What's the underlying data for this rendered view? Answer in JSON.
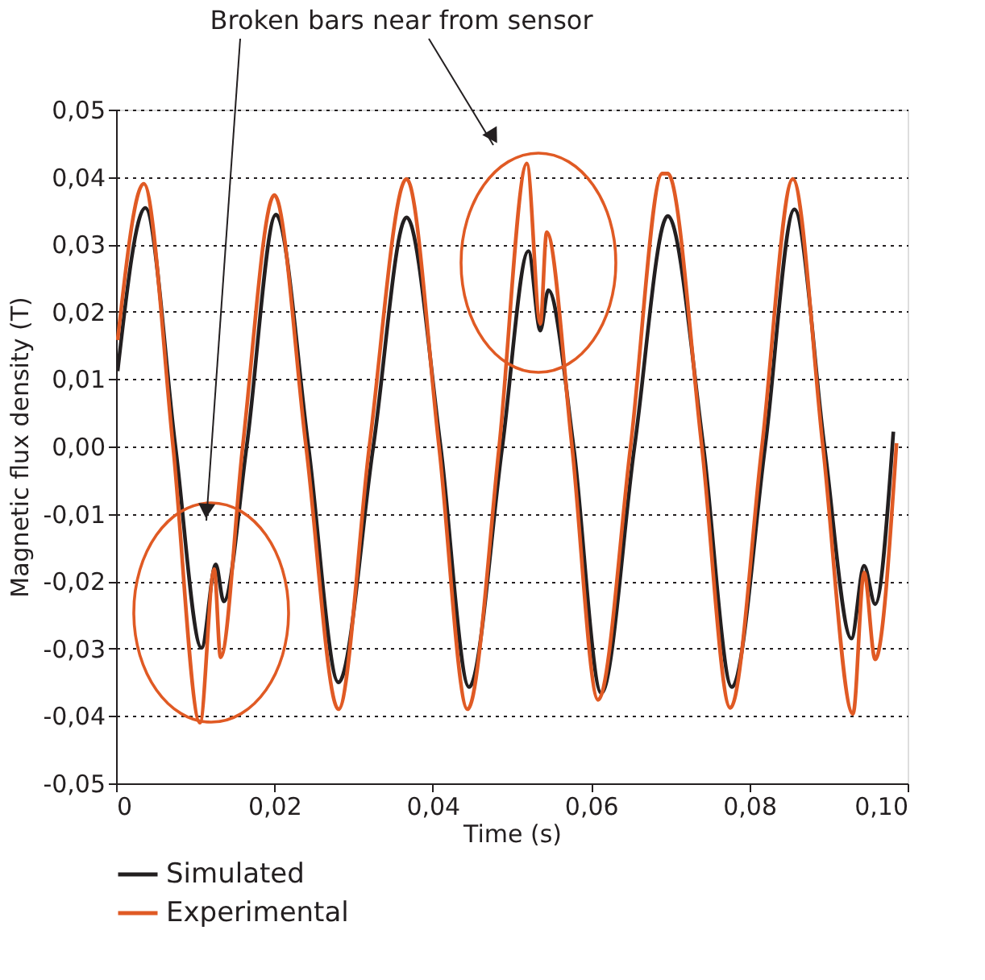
{
  "chart_data": {
    "type": "line",
    "xlabel": "Time (s)",
    "ylabel": "Magnetic flux density (T)",
    "annotations": [
      "Broken bars near from sensor"
    ],
    "xlim": [
      0,
      0.1
    ],
    "xticks": [
      0,
      {
        "value": 0.02,
        "label": "0,02"
      },
      {
        "value": 0.04,
        "label": "0,04"
      },
      {
        "value": 0.06,
        "label": "0,06"
      },
      {
        "value": 0.08,
        "label": "0,08"
      },
      {
        "value": 0.1,
        "label": "0,10"
      }
    ],
    "ylim": [
      -0.05,
      0.05
    ],
    "yticks": [
      {
        "value": -0.05,
        "label": "-0,05"
      },
      {
        "value": -0.04,
        "label": "-0,04"
      },
      {
        "value": -0.03,
        "label": "-0,03"
      },
      {
        "value": -0.02,
        "label": "-0,02"
      },
      {
        "value": -0.01,
        "label": "-0,01"
      },
      {
        "value": 0,
        "label": "0,00"
      },
      {
        "value": 0.01,
        "label": "0,01"
      },
      {
        "value": 0.02,
        "label": "0,02"
      },
      {
        "value": 0.03,
        "label": "0,03"
      },
      {
        "value": 0.04,
        "label": "0,04"
      },
      {
        "value": 0.05,
        "label": "0,05"
      }
    ],
    "grid": "y",
    "legend": "bottom",
    "marker": "none",
    "line_style": "solid",
    "series": [
      {
        "name": "Simulated",
        "color": "#231f20",
        "x": [
          0.0002,
          0.0037,
          0.0075,
          0.0108,
          0.0126,
          0.0136,
          0.0165,
          0.0202,
          0.0243,
          0.0281,
          0.0325,
          0.0367,
          0.041,
          0.0446,
          0.0488,
          0.0521,
          0.0536,
          0.0546,
          0.0578,
          0.0613,
          0.0655,
          0.0697,
          0.0742,
          0.0778,
          0.082,
          0.0857,
          0.0895,
          0.0929,
          0.0945,
          0.0959,
          0.0982
        ],
        "values": [
          0.0112,
          0.0354,
          0.0,
          -0.0299,
          -0.0175,
          -0.023,
          0.0,
          0.0344,
          0.0,
          -0.035,
          0.0,
          0.034,
          0.0,
          -0.0357,
          0.0,
          0.029,
          0.0172,
          0.0232,
          0.0,
          -0.0366,
          0.0,
          0.0342,
          0.0,
          -0.0357,
          0.0,
          0.0352,
          0.0,
          -0.0285,
          -0.0177,
          -0.0234,
          0.0022
        ]
      },
      {
        "name": "Experimental",
        "color": "#e05a24",
        "x": [
          0.0002,
          0.0035,
          0.0072,
          0.0106,
          0.0124,
          0.0132,
          0.016,
          0.02,
          0.024,
          0.0281,
          0.032,
          0.0367,
          0.0408,
          0.0444,
          0.0484,
          0.0519,
          0.0536,
          0.0544,
          0.0576,
          0.0609,
          0.065,
          0.069,
          0.0697,
          0.074,
          0.0776,
          0.0816,
          0.0855,
          0.0893,
          0.0931,
          0.0945,
          0.0959,
          0.0986
        ],
        "values": [
          0.0158,
          0.039,
          0.0,
          -0.041,
          -0.0182,
          -0.0313,
          0.0,
          0.0373,
          0.0,
          -0.039,
          0.0,
          0.0397,
          0.0,
          -0.039,
          0.0,
          0.042,
          0.0182,
          0.0318,
          0.0,
          -0.0376,
          0.0,
          0.0405,
          0.0405,
          0.0,
          -0.0388,
          0.0,
          0.0397,
          0.0,
          -0.0397,
          -0.0187,
          -0.0316,
          0.0005
        ]
      }
    ]
  }
}
